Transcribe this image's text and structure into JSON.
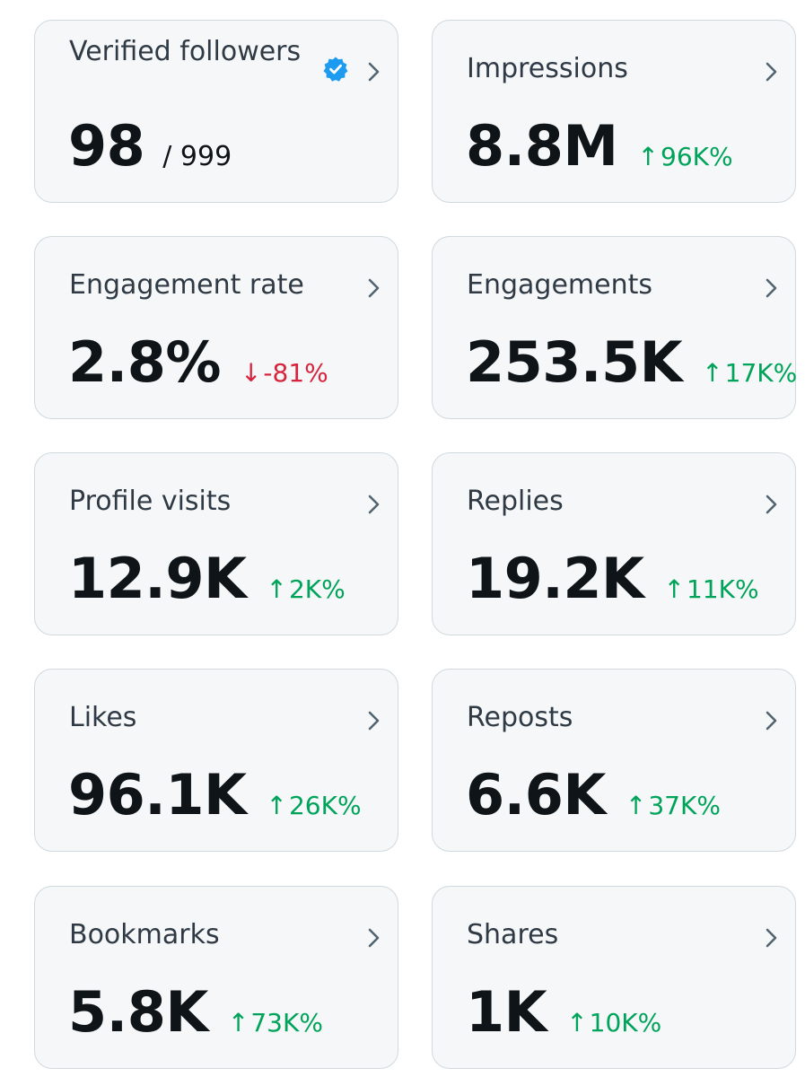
{
  "colors": {
    "card_bg": "#f5f7f8",
    "card_border": "#cfd9de",
    "text_primary": "#0f1419",
    "label_color": "#2f3a45",
    "positive": "#00a35a",
    "negative": "#d6243d",
    "verified_blue": "#1d9bf0"
  },
  "cards": {
    "verified_followers": {
      "label": "Verified followers",
      "value": "98",
      "total": "/ 999",
      "icon": "verified-badge-icon"
    },
    "impressions": {
      "label": "Impressions",
      "value": "8.8M",
      "arrow": "↑",
      "delta": "96K%",
      "trend": "up"
    },
    "engagement_rate": {
      "label": "Engagement rate",
      "value": "2.8%",
      "arrow": "↓",
      "delta": "-81%",
      "trend": "down"
    },
    "engagements": {
      "label": "Engagements",
      "value": "253.5K",
      "arrow": "↑",
      "delta": "17K%",
      "trend": "up"
    },
    "profile_visits": {
      "label": "Profile visits",
      "value": "12.9K",
      "arrow": "↑",
      "delta": "2K%",
      "trend": "up"
    },
    "replies": {
      "label": "Replies",
      "value": "19.2K",
      "arrow": "↑",
      "delta": "11K%",
      "trend": "up"
    },
    "likes": {
      "label": "Likes",
      "value": "96.1K",
      "arrow": "↑",
      "delta": "26K%",
      "trend": "up"
    },
    "reposts": {
      "label": "Reposts",
      "value": "6.6K",
      "arrow": "↑",
      "delta": "37K%",
      "trend": "up"
    },
    "bookmarks": {
      "label": "Bookmarks",
      "value": "5.8K",
      "arrow": "↑",
      "delta": "73K%",
      "trend": "up"
    },
    "shares": {
      "label": "Shares",
      "value": "1K",
      "arrow": "↑",
      "delta": "10K%",
      "trend": "up"
    }
  }
}
